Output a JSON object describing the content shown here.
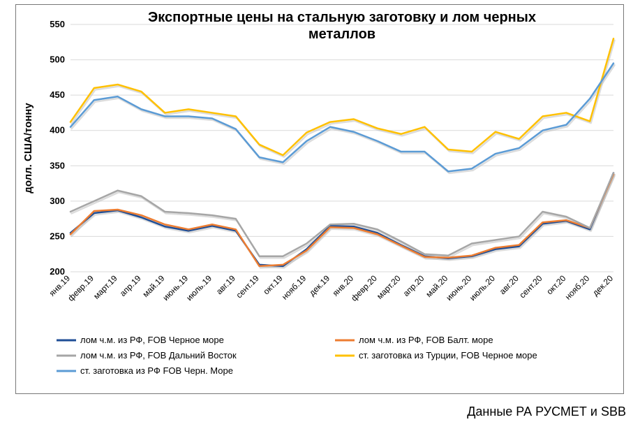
{
  "chart": {
    "type": "line",
    "title": "Экспортные цены на стальную заготовку и лом черных металлов",
    "y_axis": {
      "label": "долл. США/тонну",
      "min": 200,
      "max": 550,
      "tick_step": 50,
      "label_fontsize": 15,
      "tick_fontsize": 13
    },
    "title_fontsize": 20,
    "categories": [
      "янв.19",
      "февр.19",
      "март.19",
      "апр.19",
      "май.19",
      "июнь.19",
      "июль.19",
      "авг.19",
      "сент.19",
      "окт.19",
      "нояб.19",
      "дек.19",
      "янв.20",
      "февр.20",
      "март.20",
      "апр.20",
      "май.20",
      "июнь.20",
      "июль.20",
      "авг.20",
      "сент.20",
      "окт.20",
      "нояб.20",
      "дек.20"
    ],
    "grid_color": "#d9d9d9",
    "background_color": "#ffffff",
    "border_color": "#777777",
    "line_width": 2.5,
    "shadow_color": "#bfbfbf",
    "series": [
      {
        "key": "scrap_black_sea",
        "label": "лом ч.м. из РФ, FOB Черное море",
        "color": "#1f4e96",
        "values": [
          255,
          283,
          287,
          277,
          264,
          258,
          265,
          258,
          210,
          208,
          232,
          265,
          264,
          255,
          238,
          222,
          219,
          222,
          232,
          236,
          268,
          272,
          260,
          340
        ]
      },
      {
        "key": "scrap_baltic",
        "label": "лом ч.м. из РФ, FOB Балт. море",
        "color": "#ed7d31",
        "values": [
          253,
          286,
          288,
          280,
          267,
          260,
          267,
          260,
          208,
          210,
          230,
          263,
          262,
          253,
          237,
          221,
          220,
          223,
          234,
          238,
          270,
          273,
          262,
          338
        ]
      },
      {
        "key": "scrap_far_east",
        "label": "лом ч.м. из РФ, FOB Дальний Восток",
        "color": "#a6a6a6",
        "values": [
          285,
          300,
          315,
          307,
          285,
          283,
          280,
          275,
          222,
          222,
          240,
          267,
          268,
          260,
          243,
          225,
          223,
          240,
          245,
          250,
          285,
          278,
          262,
          340
        ]
      },
      {
        "key": "billet_turkey",
        "label": "ст. заготовка из Турции, FOB Черное море",
        "color": "#ffc000",
        "values": [
          412,
          460,
          465,
          455,
          425,
          430,
          425,
          420,
          380,
          365,
          397,
          412,
          416,
          403,
          395,
          405,
          373,
          370,
          398,
          388,
          420,
          425,
          413,
          530
        ]
      },
      {
        "key": "billet_rf_black_sea",
        "label": "ст. заготовка из РФ FOB Черн. Море",
        "color": "#5b9bd5",
        "values": [
          405,
          443,
          448,
          430,
          420,
          420,
          417,
          402,
          362,
          355,
          385,
          405,
          398,
          385,
          370,
          370,
          342,
          346,
          367,
          375,
          400,
          408,
          445,
          495
        ]
      }
    ],
    "source": "Данные РА РУСМЕТ и SBB"
  }
}
